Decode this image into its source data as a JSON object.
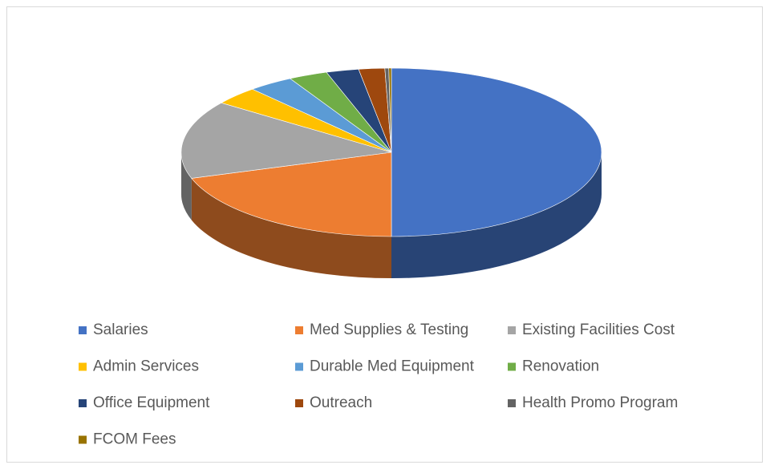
{
  "chart_data": {
    "type": "pie3d",
    "categories": [
      "Salaries",
      "Med Supplies & Testing",
      "Existing Facilities Cost",
      "Admin Services",
      "Durable Med Equipment",
      "Renovation",
      "Office Equipment",
      "Outreach",
      "Health Promo Program",
      "FCOM Fees"
    ],
    "values": [
      50,
      20,
      15,
      3.5,
      3.5,
      3,
      2.5,
      2,
      0.3,
      0.2
    ],
    "colors": [
      "#4472c4",
      "#ed7d31",
      "#a5a5a5",
      "#ffc000",
      "#5b9bd5",
      "#70ad47",
      "#264478",
      "#9e480e",
      "#636363",
      "#997300"
    ],
    "legend": "bottom"
  }
}
